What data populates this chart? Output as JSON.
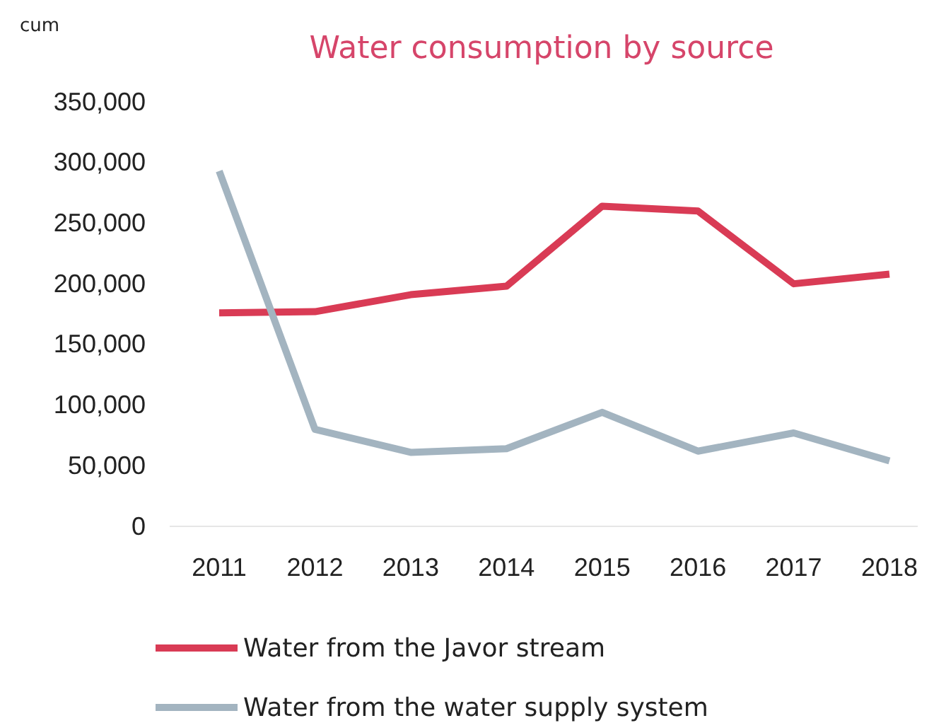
{
  "chart_data": {
    "type": "line",
    "title": "Water consumption by source",
    "ylabel": "cum",
    "categories": [
      "2011",
      "2012",
      "2013",
      "2014",
      "2015",
      "2016",
      "2017",
      "2018"
    ],
    "series": [
      {
        "name": "Water from the Javor stream",
        "color": "#d93b55",
        "values": [
          176000,
          177000,
          191000,
          198000,
          264000,
          260000,
          200000,
          208000
        ]
      },
      {
        "name": "Water from the water supply system",
        "color": "#a3b4c0",
        "values": [
          293000,
          80000,
          61000,
          64000,
          94000,
          62000,
          77000,
          54000
        ]
      }
    ],
    "ylim": [
      0,
      350000
    ],
    "yticks": [
      {
        "value": 0,
        "label": "0"
      },
      {
        "value": 50000,
        "label": "50,000"
      },
      {
        "value": 100000,
        "label": "100,000"
      },
      {
        "value": 150000,
        "label": "150,000"
      },
      {
        "value": 200000,
        "label": "200,000"
      },
      {
        "value": 250000,
        "label": "250,000"
      },
      {
        "value": 300000,
        "label": "300,000"
      },
      {
        "value": 350000,
        "label": "350,000"
      }
    ],
    "grid": false,
    "legend": "bottom",
    "marker": "none",
    "line_style": "solid"
  }
}
